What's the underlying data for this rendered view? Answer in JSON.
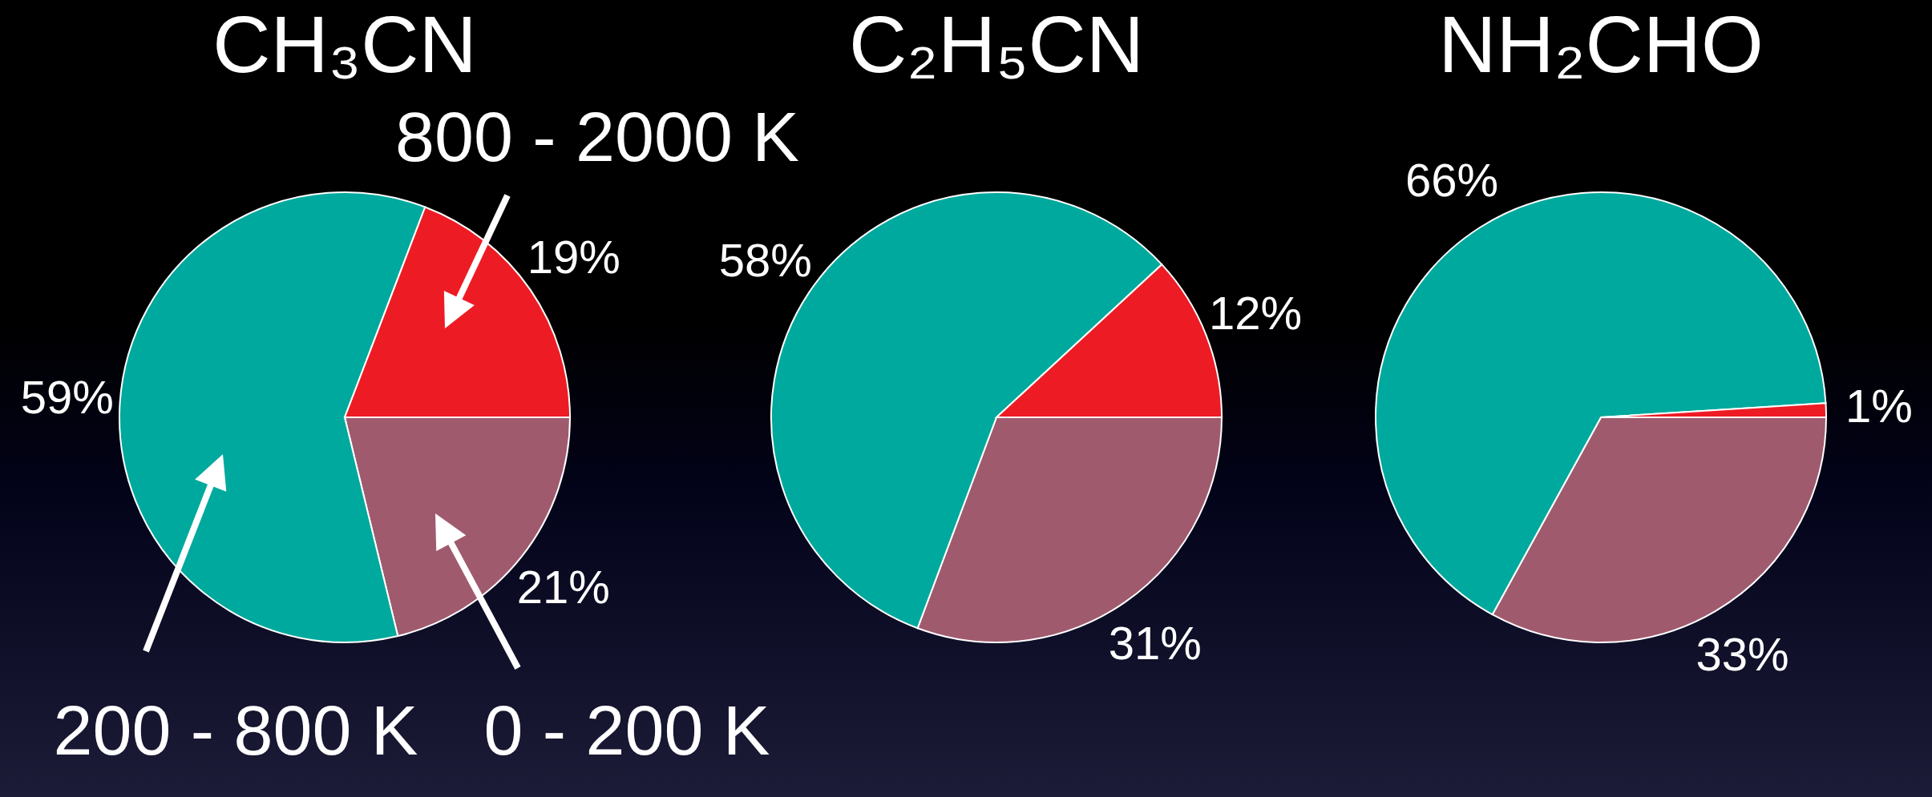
{
  "chart_data": [
    {
      "type": "pie",
      "title": "CH₃CN",
      "categories": [
        "0 - 200 K",
        "200 - 800 K",
        "800 - 2000 K"
      ],
      "values": [
        21,
        59,
        19
      ],
      "colors": [
        "#a05a6e",
        "#00a99d",
        "#ed1c24"
      ],
      "value_labels": [
        "21%",
        "59%",
        "19%"
      ]
    },
    {
      "type": "pie",
      "title": "C₂H₅CN",
      "categories": [
        null,
        null,
        null
      ],
      "values": [
        31,
        58,
        12
      ],
      "colors": [
        "#a05a6e",
        "#00a99d",
        "#ed1c24"
      ],
      "value_labels": [
        "31%",
        "58%",
        "12%"
      ]
    },
    {
      "type": "pie",
      "title": "NH₂CHO",
      "categories": [
        null,
        null,
        null
      ],
      "values": [
        33,
        66,
        1
      ],
      "colors": [
        "#a05a6e",
        "#00a99d",
        "#ed1c24"
      ],
      "value_labels": [
        "33%",
        "66%",
        "1%"
      ]
    }
  ]
}
